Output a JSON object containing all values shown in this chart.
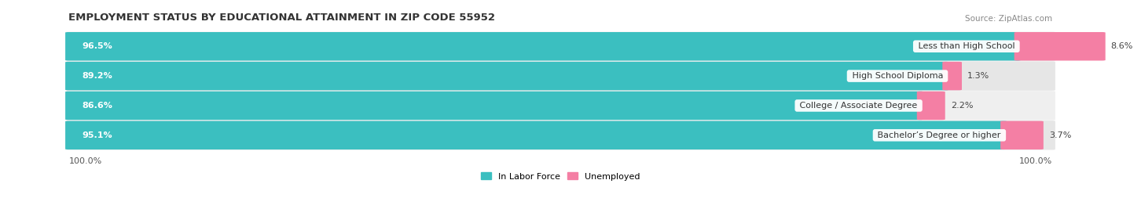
{
  "title": "EMPLOYMENT STATUS BY EDUCATIONAL ATTAINMENT IN ZIP CODE 55952",
  "source": "Source: ZipAtlas.com",
  "categories": [
    "Less than High School",
    "High School Diploma",
    "College / Associate Degree",
    "Bachelor’s Degree or higher"
  ],
  "labor_force_values": [
    96.5,
    89.2,
    86.6,
    95.1
  ],
  "unemployed_values": [
    8.6,
    1.3,
    2.2,
    3.7
  ],
  "labor_force_color": "#3BBFC0",
  "unemployed_color": "#F47FA4",
  "row_bg_even": "#EFEFEF",
  "row_bg_odd": "#E6E6E6",
  "x_axis_left_label": "100.0%",
  "x_axis_right_label": "100.0%",
  "legend_labor_force": "In Labor Force",
  "legend_unemployed": "Unemployed",
  "title_fontsize": 9.5,
  "source_fontsize": 7.5,
  "label_fontsize": 8,
  "bar_label_fontsize": 8,
  "max_value": 100.0,
  "background_color": "#FFFFFF"
}
